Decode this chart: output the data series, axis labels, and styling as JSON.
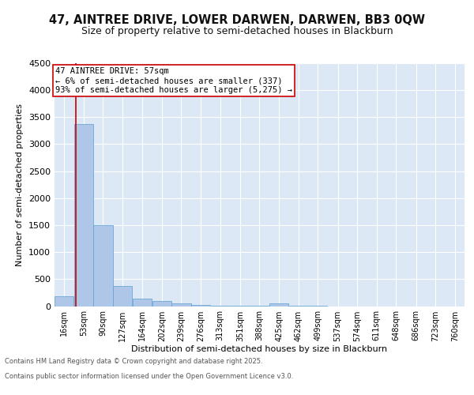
{
  "title": "47, AINTREE DRIVE, LOWER DARWEN, DARWEN, BB3 0QW",
  "subtitle": "Size of property relative to semi-detached houses in Blackburn",
  "xlabel": "Distribution of semi-detached houses by size in Blackburn",
  "ylabel": "Number of semi-detached properties",
  "bin_labels": [
    "16sqm",
    "53sqm",
    "90sqm",
    "127sqm",
    "164sqm",
    "202sqm",
    "239sqm",
    "276sqm",
    "313sqm",
    "351sqm",
    "388sqm",
    "425sqm",
    "462sqm",
    "499sqm",
    "537sqm",
    "574sqm",
    "611sqm",
    "648sqm",
    "686sqm",
    "723sqm",
    "760sqm"
  ],
  "bin_edges": [
    16,
    53,
    90,
    127,
    164,
    202,
    239,
    276,
    313,
    351,
    388,
    425,
    462,
    499,
    537,
    574,
    611,
    648,
    686,
    723,
    760
  ],
  "bar_heights": [
    190,
    3380,
    1500,
    380,
    140,
    90,
    55,
    20,
    10,
    5,
    5,
    50,
    2,
    1,
    0,
    0,
    0,
    0,
    0,
    0
  ],
  "bar_color": "#aec6e8",
  "bar_edge_color": "#5a9fd4",
  "property_line_x": 57,
  "property_line_color": "#cc0000",
  "annotation_text": "47 AINTREE DRIVE: 57sqm\n← 6% of semi-detached houses are smaller (337)\n93% of semi-detached houses are larger (5,275) →",
  "annotation_box_color": "#ffffff",
  "annotation_box_edge_color": "#cc0000",
  "ylim": [
    0,
    4500
  ],
  "yticks": [
    0,
    500,
    1000,
    1500,
    2000,
    2500,
    3000,
    3500,
    4000,
    4500
  ],
  "background_color": "#dce8f5",
  "footer_line1": "Contains HM Land Registry data © Crown copyright and database right 2025.",
  "footer_line2": "Contains public sector information licensed under the Open Government Licence v3.0.",
  "title_fontsize": 10.5,
  "subtitle_fontsize": 9,
  "axis_label_fontsize": 8,
  "tick_fontsize": 7,
  "annotation_fontsize": 7.5,
  "footer_fontsize": 6
}
